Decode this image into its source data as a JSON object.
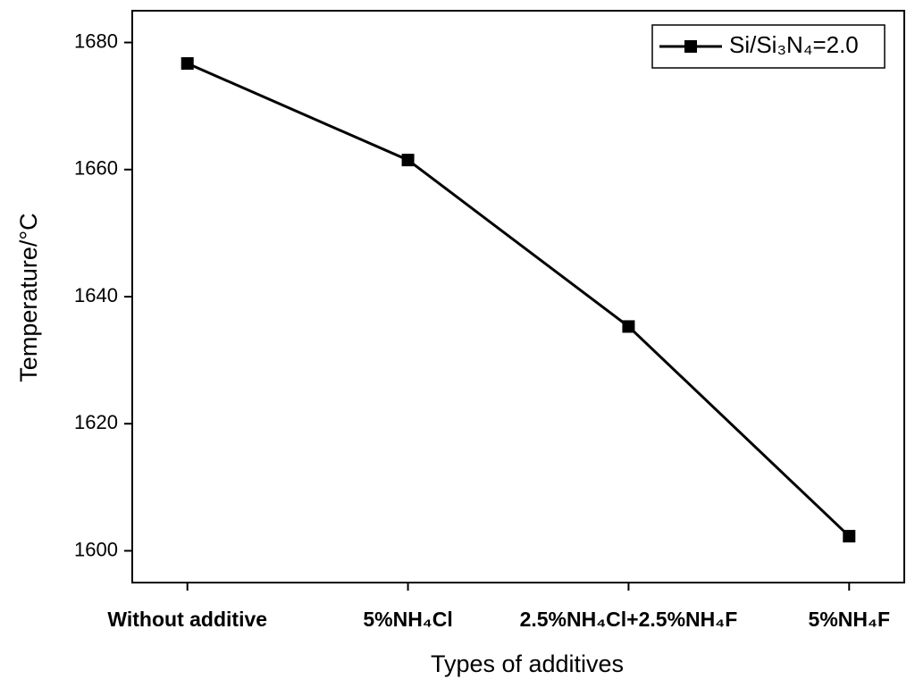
{
  "chart_data": {
    "type": "line",
    "x_label": "Types of additives",
    "y_label": "Temperature/°C",
    "categories": [
      "Without additive",
      "5%NH₄Cl",
      "2.5%NH₄Cl+2.5%NH₄F",
      "5%NH₄F"
    ],
    "series": [
      {
        "name": "Si/Si₃N₄=2.0",
        "color": "#000000",
        "values": [
          1676.7,
          1661.5,
          1635.3,
          1602.3
        ]
      }
    ],
    "ylim": [
      1595,
      1685
    ],
    "yticks": [
      1600,
      1620,
      1640,
      1660,
      1680
    ],
    "legend": "upper right"
  }
}
